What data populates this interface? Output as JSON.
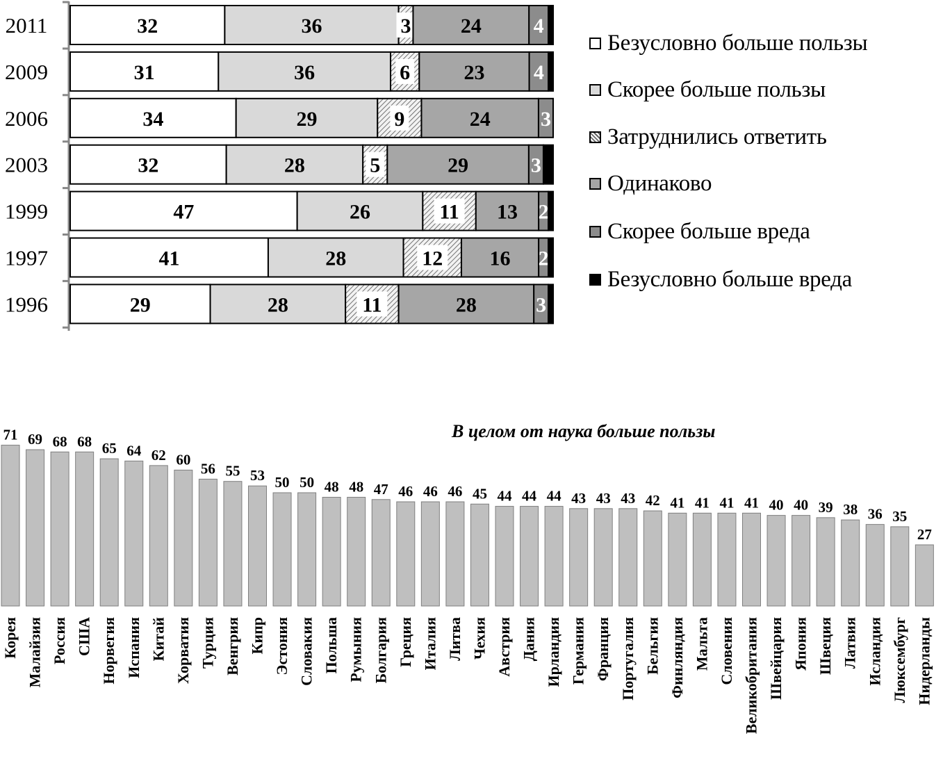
{
  "colors": {
    "strongly_benefit": "#ffffff",
    "rather_benefit": "#d9d9d9",
    "hard_to_say": "#e6e6e6",
    "equal": "#a6a6a6",
    "rather_harm": "#8c8c8c",
    "strongly_harm": "#000000",
    "bar_fill": "#bfbfbf"
  },
  "chart_data": [
    {
      "type": "bar",
      "orientation": "horizontal",
      "stacked": true,
      "categories": [
        "2011",
        "2009",
        "2006",
        "2003",
        "1999",
        "1997",
        "1996"
      ],
      "series": [
        {
          "name": "Безусловно больше пользы",
          "values": [
            32,
            31,
            34,
            32,
            47,
            41,
            29
          ]
        },
        {
          "name": "Скорее больше пользы",
          "values": [
            36,
            36,
            29,
            28,
            26,
            28,
            28
          ]
        },
        {
          "name": "Затруднились ответить",
          "values": [
            3,
            6,
            9,
            5,
            11,
            12,
            11
          ]
        },
        {
          "name": "Одинаково",
          "values": [
            24,
            23,
            24,
            29,
            13,
            16,
            28
          ]
        },
        {
          "name": "Скорее больше вреда",
          "values": [
            4,
            4,
            3,
            3,
            2,
            2,
            3
          ]
        },
        {
          "name": "Безусловно больше вреда",
          "values": [
            1,
            1,
            0,
            2,
            1,
            1,
            1
          ]
        }
      ],
      "legend_position": "right",
      "xlim": [
        0,
        100
      ]
    },
    {
      "type": "bar",
      "title": "В целом от наука больше пользы",
      "categories": [
        "Корея",
        "Малайзия",
        "Россия",
        "США",
        "Норвегия",
        "Испания",
        "Китай",
        "Хорватия",
        "Турция",
        "Венгрия",
        "Кипр",
        "Эстония",
        "Словакия",
        "Польша",
        "Румыния",
        "Болгария",
        "Греция",
        "Италия",
        "Литва",
        "Чехия",
        "Австрия",
        "Дания",
        "Ирландия",
        "Германия",
        "Франция",
        "Португалия",
        "Бельгия",
        "Финляндия",
        "Мальта",
        "Словения",
        "Великобритания",
        "Швейцария",
        "Япония",
        "Швеция",
        "Латвия",
        "Исландия",
        "Люксембург",
        "Нидерланды"
      ],
      "values": [
        71,
        69,
        68,
        68,
        65,
        64,
        62,
        60,
        56,
        55,
        53,
        50,
        50,
        48,
        48,
        47,
        46,
        46,
        46,
        45,
        44,
        44,
        44,
        43,
        43,
        43,
        42,
        41,
        41,
        41,
        41,
        40,
        40,
        39,
        38,
        36,
        35,
        27
      ],
      "ylim": [
        0,
        80
      ]
    }
  ]
}
